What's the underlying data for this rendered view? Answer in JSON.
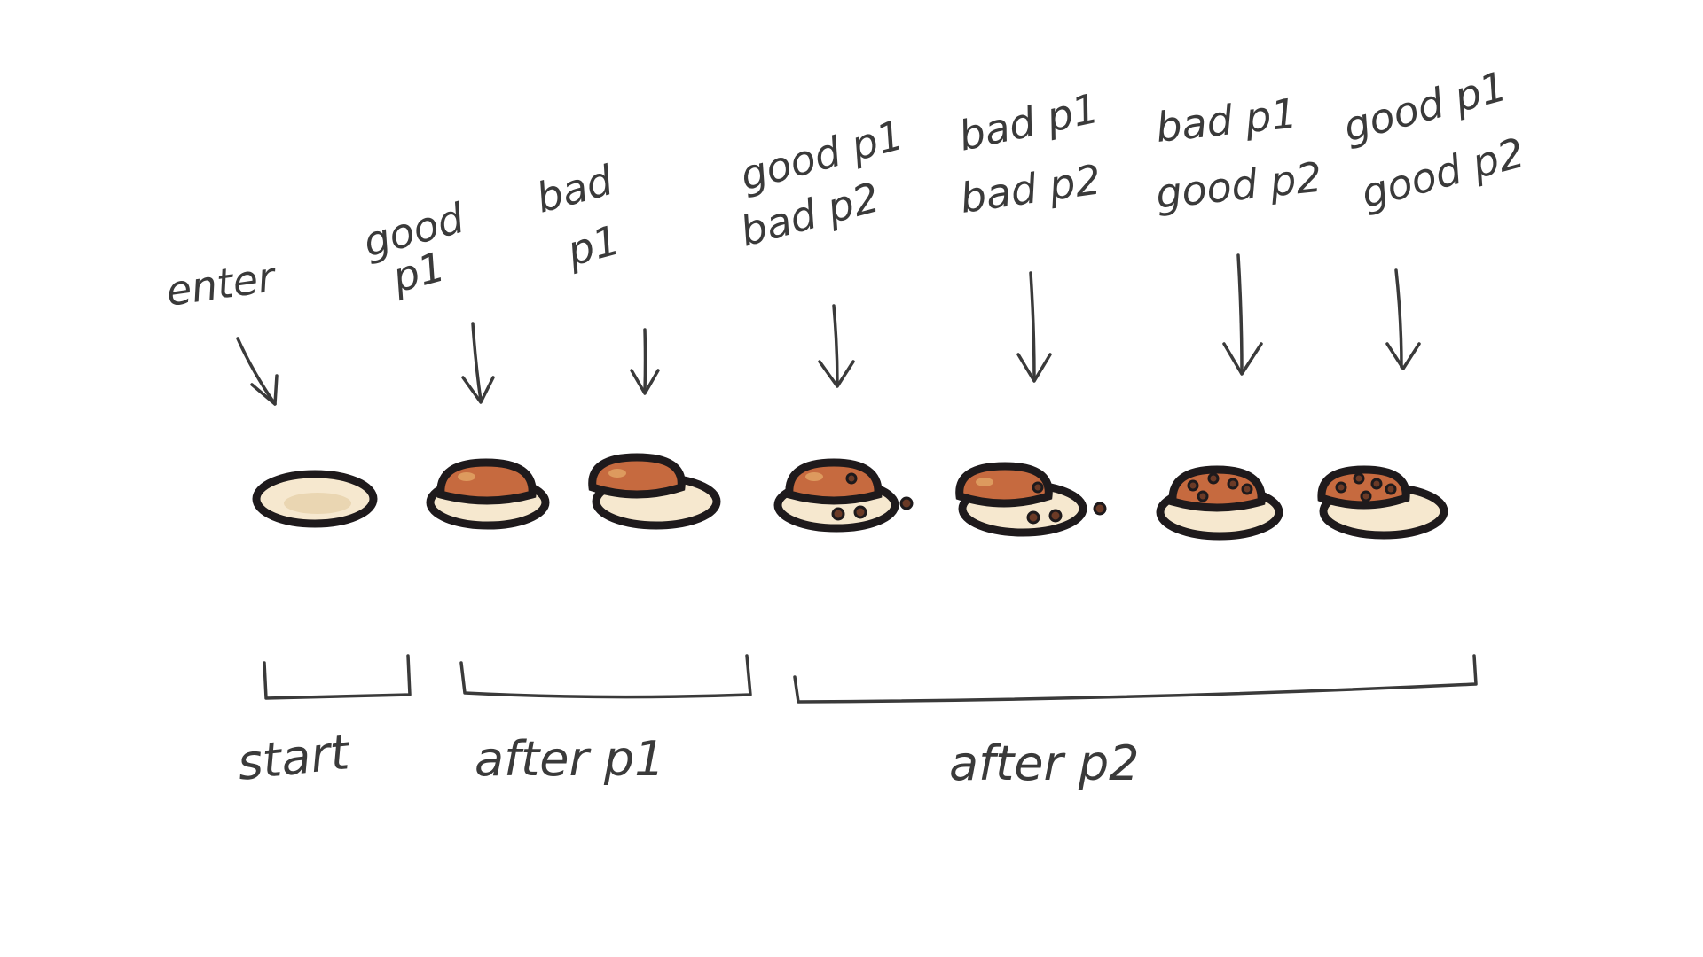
{
  "stages": [
    {
      "lines": [
        "enter"
      ],
      "bun": false,
      "bun_offset": "none",
      "crumbs": "none"
    },
    {
      "lines": [
        "good",
        "p1"
      ],
      "bun": true,
      "bun_offset": "center",
      "crumbs": "none"
    },
    {
      "lines": [
        "bad",
        "p1"
      ],
      "bun": true,
      "bun_offset": "left",
      "crumbs": "none"
    },
    {
      "lines": [
        "good p1",
        "bad p2"
      ],
      "bun": true,
      "bun_offset": "center",
      "crumbs": "beside"
    },
    {
      "lines": [
        "bad p1",
        "bad p2"
      ],
      "bun": true,
      "bun_offset": "left",
      "crumbs": "beside"
    },
    {
      "lines": [
        "bad p1",
        "good p2"
      ],
      "bun": true,
      "bun_offset": "center",
      "crumbs": "on-top"
    },
    {
      "lines": [
        "good p1",
        "good p2"
      ],
      "bun": true,
      "bun_offset": "left",
      "crumbs": "on-top"
    }
  ],
  "groups": [
    {
      "label": "start",
      "span": [
        1,
        1
      ]
    },
    {
      "label": "after p1",
      "span": [
        2,
        3
      ]
    },
    {
      "label": "after p2",
      "span": [
        4,
        7
      ]
    }
  ],
  "colors": {
    "plate": "#f6e8cf",
    "bun": "#c66a3f",
    "bun_highlight": "#dd9a5e",
    "outline": "#1e1a1c",
    "crumb": "#6b3a26",
    "ink": "#3a3a3a"
  }
}
